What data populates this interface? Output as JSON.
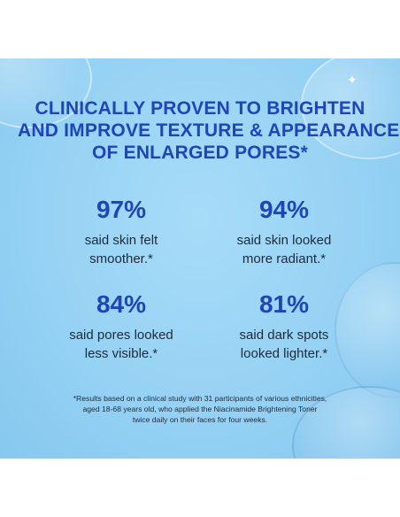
{
  "headline": {
    "line1": "CLINICALLY PROVEN TO BRIGHTEN",
    "line2": "AND IMPROVE TEXTURE & APPEARANCE",
    "line3": "OF ENLARGED PORES*"
  },
  "stats": [
    {
      "value": "97%",
      "line1": "said skin felt",
      "line2": "smoother.*"
    },
    {
      "value": "94%",
      "line1": "said skin looked",
      "line2": "more radiant.*"
    },
    {
      "value": "84%",
      "line1": "said pores looked",
      "line2": "less visible.*"
    },
    {
      "value": "81%",
      "line1": "said dark spots",
      "line2": "looked lighter.*"
    }
  ],
  "footnote": {
    "line1": "*Results based on a clinical study with 31 participants of various ethnicities,",
    "line2": "aged 18-68 years old, who applied the Niacinamide Brightening Toner",
    "line3": "twice daily on their faces for four weeks."
  },
  "colors": {
    "headline": "#1f45b8",
    "background": "#96d2f4",
    "body_text": "#1f2a3a"
  }
}
